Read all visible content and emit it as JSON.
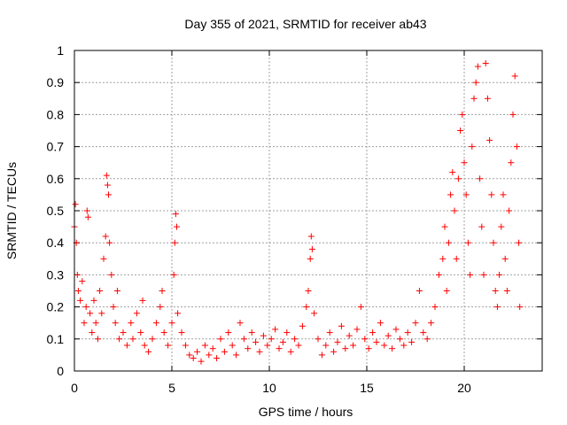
{
  "chart_data": {
    "type": "scatter",
    "title": "Day 355 of 2021, SRMTID for receiver ab43",
    "xlabel": "GPS time / hours",
    "ylabel": "SRMTID / TECUs",
    "xlim": [
      0,
      24
    ],
    "ylim": [
      0,
      1
    ],
    "xticks": [
      0,
      5,
      10,
      15,
      20
    ],
    "xtick_labels": [
      "0",
      "5",
      "10",
      "15",
      "20"
    ],
    "yticks": [
      0,
      0.1,
      0.2,
      0.3,
      0.4,
      0.5,
      0.6,
      0.7,
      0.8,
      0.9,
      1
    ],
    "ytick_labels": [
      "0",
      "0.1",
      "0.2",
      "0.3",
      "0.4",
      "0.5",
      "0.6",
      "0.7",
      "0.8",
      "0.9",
      "1"
    ],
    "grid": true,
    "marker": "+",
    "color": "#ff0000",
    "series": [
      {
        "name": "SRMTID",
        "points": [
          [
            0.0,
            0.45
          ],
          [
            0.05,
            0.52
          ],
          [
            0.1,
            0.4
          ],
          [
            0.15,
            0.3
          ],
          [
            0.2,
            0.25
          ],
          [
            0.3,
            0.22
          ],
          [
            0.4,
            0.28
          ],
          [
            0.5,
            0.15
          ],
          [
            0.6,
            0.2
          ],
          [
            0.65,
            0.5
          ],
          [
            0.7,
            0.48
          ],
          [
            0.8,
            0.18
          ],
          [
            0.9,
            0.12
          ],
          [
            1.0,
            0.22
          ],
          [
            1.1,
            0.15
          ],
          [
            1.2,
            0.1
          ],
          [
            1.3,
            0.25
          ],
          [
            1.4,
            0.18
          ],
          [
            1.5,
            0.35
          ],
          [
            1.6,
            0.42
          ],
          [
            1.65,
            0.61
          ],
          [
            1.7,
            0.58
          ],
          [
            1.75,
            0.55
          ],
          [
            1.8,
            0.4
          ],
          [
            1.9,
            0.3
          ],
          [
            2.0,
            0.2
          ],
          [
            2.1,
            0.15
          ],
          [
            2.2,
            0.25
          ],
          [
            2.3,
            0.1
          ],
          [
            2.5,
            0.12
          ],
          [
            2.7,
            0.08
          ],
          [
            2.9,
            0.15
          ],
          [
            3.0,
            0.1
          ],
          [
            3.2,
            0.18
          ],
          [
            3.4,
            0.12
          ],
          [
            3.5,
            0.22
          ],
          [
            3.6,
            0.08
          ],
          [
            3.8,
            0.06
          ],
          [
            4.0,
            0.1
          ],
          [
            4.2,
            0.15
          ],
          [
            4.4,
            0.2
          ],
          [
            4.5,
            0.25
          ],
          [
            4.6,
            0.12
          ],
          [
            4.8,
            0.08
          ],
          [
            5.0,
            0.15
          ],
          [
            5.1,
            0.3
          ],
          [
            5.15,
            0.4
          ],
          [
            5.2,
            0.49
          ],
          [
            5.25,
            0.45
          ],
          [
            5.3,
            0.18
          ],
          [
            5.5,
            0.12
          ],
          [
            5.7,
            0.08
          ],
          [
            5.9,
            0.05
          ],
          [
            6.1,
            0.04
          ],
          [
            6.3,
            0.06
          ],
          [
            6.5,
            0.03
          ],
          [
            6.7,
            0.08
          ],
          [
            6.9,
            0.05
          ],
          [
            7.1,
            0.07
          ],
          [
            7.3,
            0.04
          ],
          [
            7.5,
            0.1
          ],
          [
            7.7,
            0.06
          ],
          [
            7.9,
            0.12
          ],
          [
            8.1,
            0.08
          ],
          [
            8.3,
            0.05
          ],
          [
            8.5,
            0.15
          ],
          [
            8.7,
            0.1
          ],
          [
            8.9,
            0.07
          ],
          [
            9.1,
            0.12
          ],
          [
            9.3,
            0.09
          ],
          [
            9.5,
            0.06
          ],
          [
            9.7,
            0.11
          ],
          [
            9.9,
            0.08
          ],
          [
            10.1,
            0.1
          ],
          [
            10.3,
            0.13
          ],
          [
            10.5,
            0.07
          ],
          [
            10.7,
            0.09
          ],
          [
            10.9,
            0.12
          ],
          [
            11.1,
            0.06
          ],
          [
            11.3,
            0.1
          ],
          [
            11.5,
            0.08
          ],
          [
            11.7,
            0.14
          ],
          [
            11.9,
            0.2
          ],
          [
            12.0,
            0.25
          ],
          [
            12.1,
            0.35
          ],
          [
            12.15,
            0.42
          ],
          [
            12.2,
            0.38
          ],
          [
            12.3,
            0.18
          ],
          [
            12.5,
            0.1
          ],
          [
            12.7,
            0.05
          ],
          [
            12.9,
            0.08
          ],
          [
            13.1,
            0.12
          ],
          [
            13.3,
            0.06
          ],
          [
            13.5,
            0.09
          ],
          [
            13.7,
            0.14
          ],
          [
            13.9,
            0.07
          ],
          [
            14.1,
            0.11
          ],
          [
            14.3,
            0.08
          ],
          [
            14.5,
            0.13
          ],
          [
            14.7,
            0.2
          ],
          [
            14.9,
            0.1
          ],
          [
            15.1,
            0.07
          ],
          [
            15.3,
            0.12
          ],
          [
            15.5,
            0.09
          ],
          [
            15.7,
            0.15
          ],
          [
            15.9,
            0.08
          ],
          [
            16.1,
            0.11
          ],
          [
            16.3,
            0.07
          ],
          [
            16.5,
            0.13
          ],
          [
            16.7,
            0.1
          ],
          [
            16.9,
            0.08
          ],
          [
            17.1,
            0.12
          ],
          [
            17.3,
            0.09
          ],
          [
            17.5,
            0.15
          ],
          [
            17.7,
            0.25
          ],
          [
            17.9,
            0.12
          ],
          [
            18.1,
            0.1
          ],
          [
            18.3,
            0.15
          ],
          [
            18.5,
            0.2
          ],
          [
            18.7,
            0.3
          ],
          [
            18.9,
            0.35
          ],
          [
            19.0,
            0.45
          ],
          [
            19.1,
            0.25
          ],
          [
            19.2,
            0.4
          ],
          [
            19.3,
            0.55
          ],
          [
            19.4,
            0.62
          ],
          [
            19.5,
            0.5
          ],
          [
            19.6,
            0.35
          ],
          [
            19.7,
            0.6
          ],
          [
            19.8,
            0.75
          ],
          [
            19.9,
            0.8
          ],
          [
            20.0,
            0.65
          ],
          [
            20.1,
            0.55
          ],
          [
            20.2,
            0.4
          ],
          [
            20.3,
            0.3
          ],
          [
            20.4,
            0.7
          ],
          [
            20.5,
            0.85
          ],
          [
            20.6,
            0.9
          ],
          [
            20.7,
            0.95
          ],
          [
            20.8,
            0.6
          ],
          [
            20.9,
            0.45
          ],
          [
            21.0,
            0.3
          ],
          [
            21.1,
            0.96
          ],
          [
            21.2,
            0.85
          ],
          [
            21.3,
            0.72
          ],
          [
            21.4,
            0.55
          ],
          [
            21.5,
            0.4
          ],
          [
            21.6,
            0.25
          ],
          [
            21.7,
            0.2
          ],
          [
            21.8,
            0.3
          ],
          [
            21.9,
            0.45
          ],
          [
            22.0,
            0.55
          ],
          [
            22.1,
            0.35
          ],
          [
            22.2,
            0.25
          ],
          [
            22.3,
            0.5
          ],
          [
            22.4,
            0.65
          ],
          [
            22.5,
            0.8
          ],
          [
            22.6,
            0.92
          ],
          [
            22.7,
            0.7
          ],
          [
            22.8,
            0.4
          ],
          [
            22.85,
            0.2
          ]
        ]
      }
    ]
  }
}
